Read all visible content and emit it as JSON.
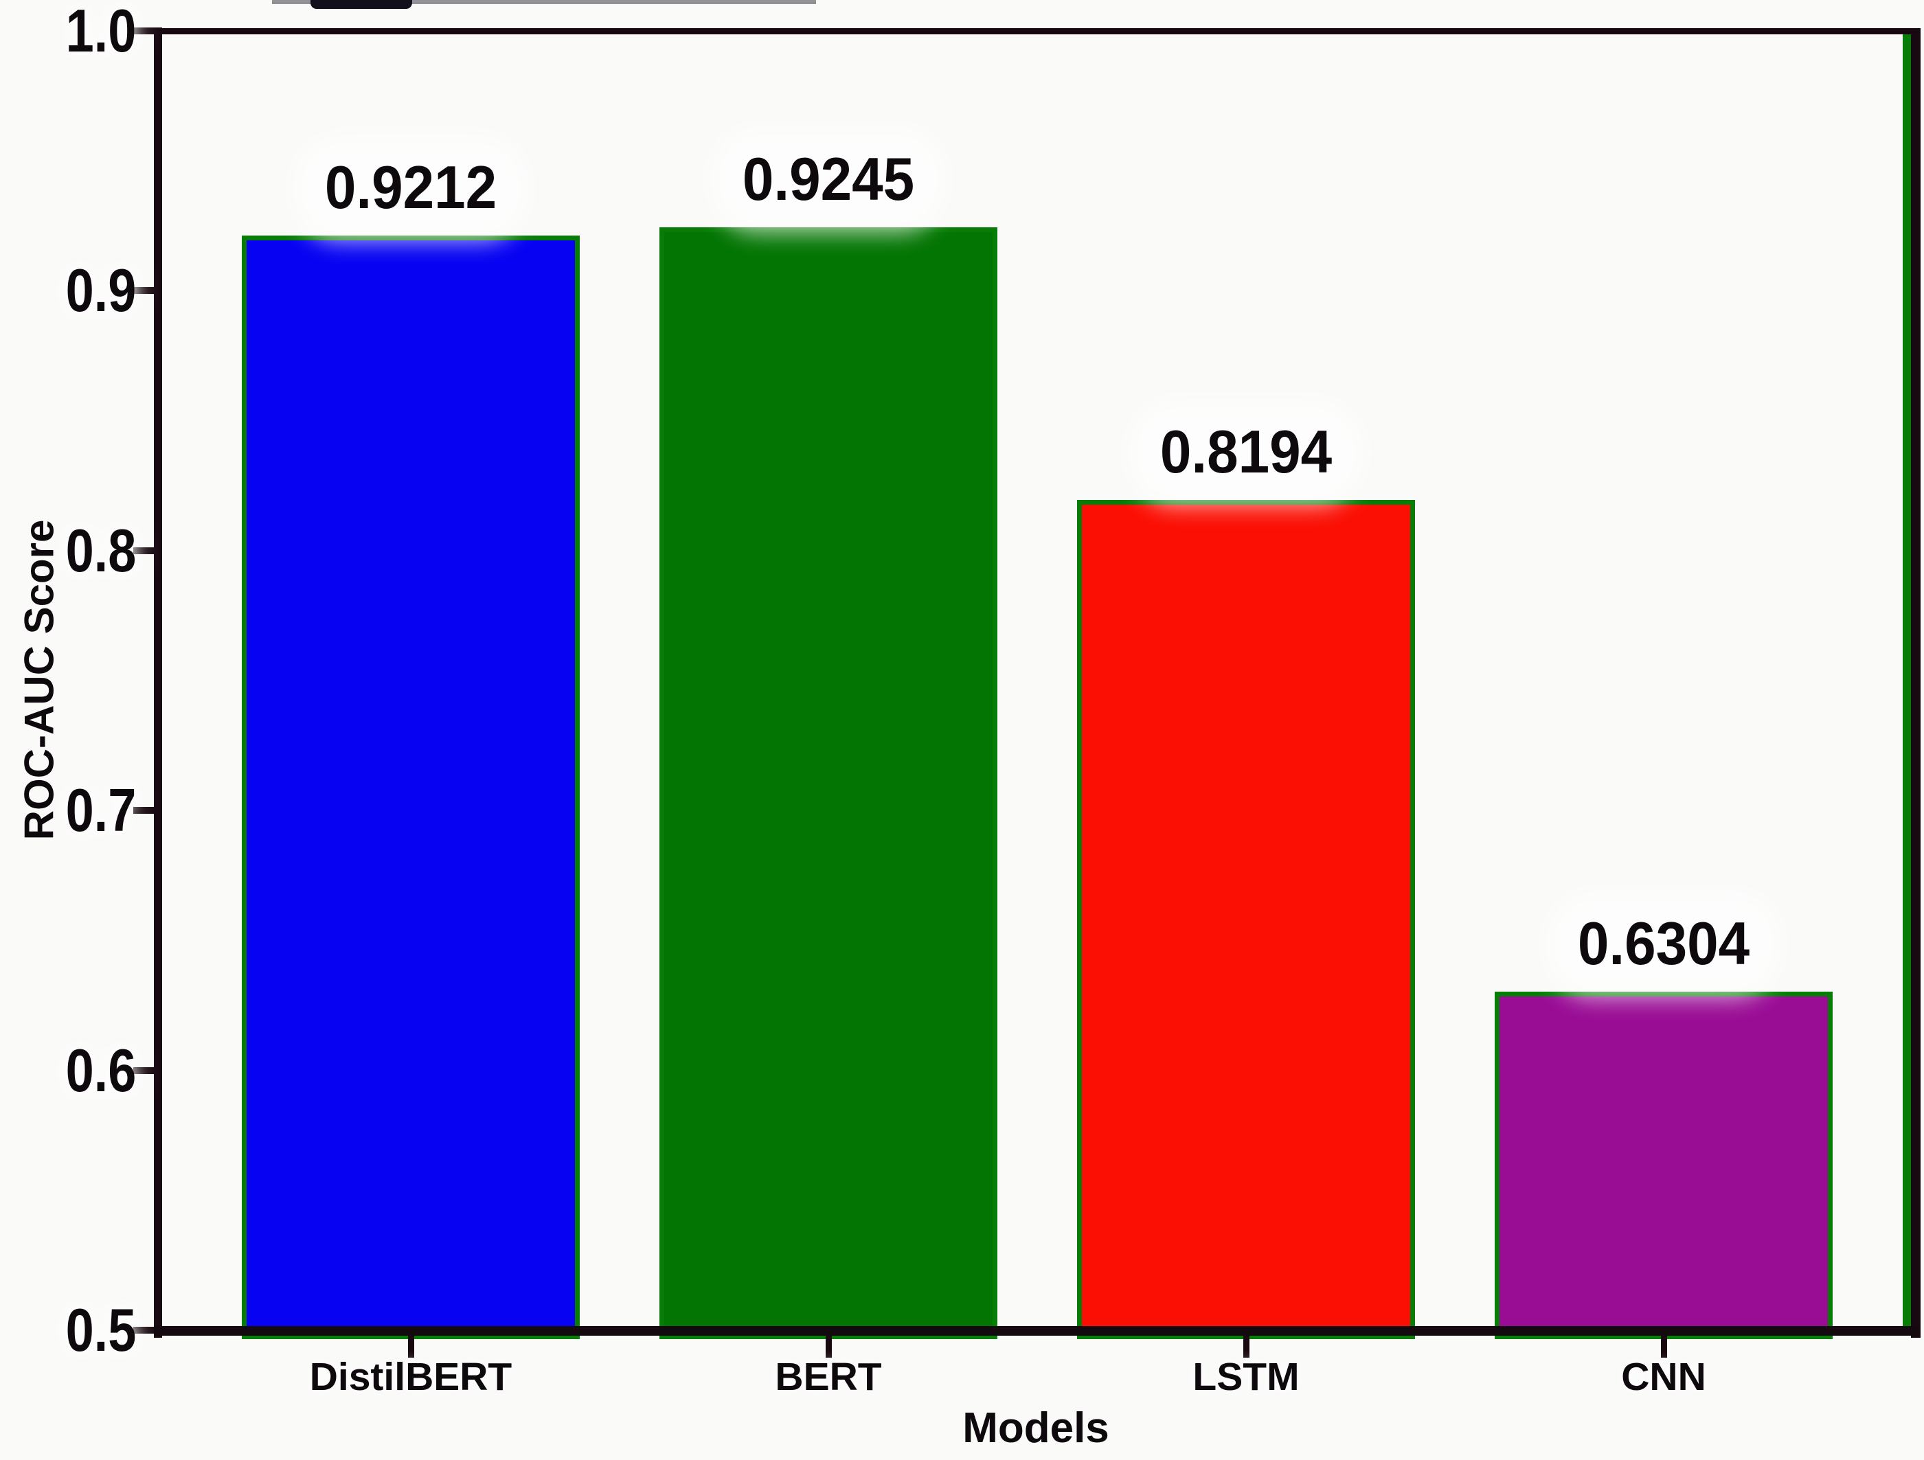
{
  "figure": {
    "background": "#fafaf9",
    "frame_color": "#17090f",
    "text_color": "#0d090c"
  },
  "chart_data": {
    "type": "bar",
    "title": "",
    "xlabel": "Models",
    "ylabel": "ROC-AUC Score",
    "categories": [
      "DistilBERT",
      "BERT",
      "LSTM",
      "CNN"
    ],
    "values": [
      0.9212,
      0.9245,
      0.8194,
      0.6304
    ],
    "value_labels": [
      "0.9212",
      "0.9245",
      "0.8194",
      "0.6304"
    ],
    "bar_colors": [
      "#0703f2",
      "#037503",
      "#fb0f04",
      "#990d95"
    ],
    "bar_edge_color": "#077c07",
    "ylim": [
      0.5,
      1.0
    ],
    "yticks": [
      "0.5",
      "0.6",
      "0.7",
      "0.8",
      "0.9",
      "1.0"
    ],
    "grid": false,
    "legend": null
  }
}
